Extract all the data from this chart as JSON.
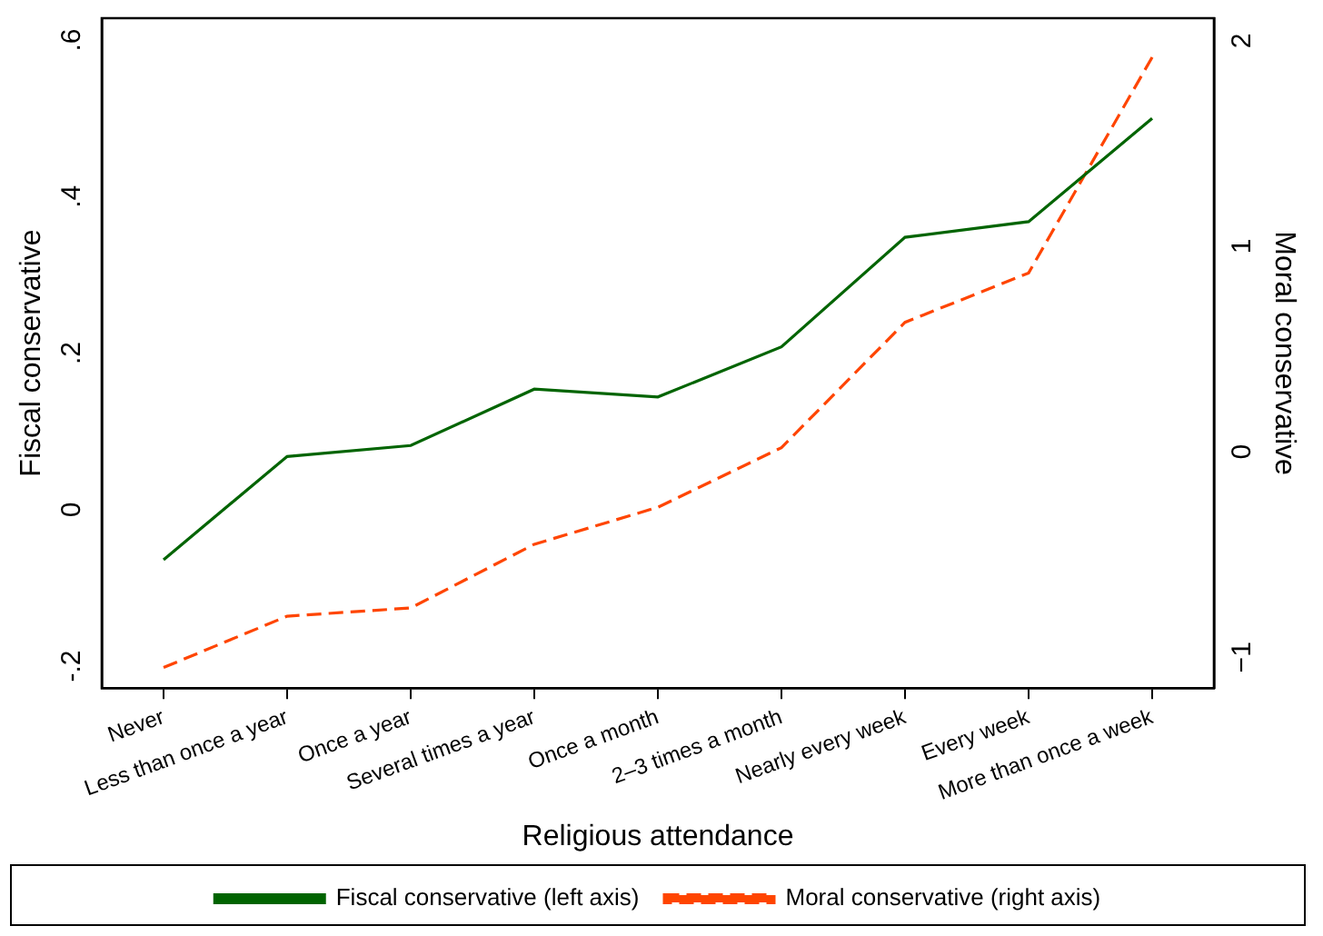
{
  "chart_data": {
    "type": "line",
    "xlabel": "Religious attendance",
    "ylabel": "Fiscal conservative",
    "y2label": "Moral conservative",
    "categories": [
      "Never",
      "Less than once a year",
      "Once a year",
      "Several times a year",
      "Once a month",
      "2–3 times a month",
      "Nearly every week",
      "Every week",
      "More than once a week"
    ],
    "series": [
      {
        "name": "Fiscal conservative (left axis)",
        "color": "#006400",
        "line_style": "solid",
        "values": [
          -0.064,
          0.068,
          0.082,
          0.154,
          0.144,
          0.208,
          0.348,
          0.368,
          0.5
        ]
      },
      {
        "name": "Moral conservative (right axis)",
        "color": "#ff4500",
        "line_style": "dashed",
        "axis": "y2",
        "values": [
          -1.05,
          -0.8,
          -0.76,
          -0.45,
          -0.27,
          0.02,
          0.63,
          0.87,
          1.92
        ]
      }
    ],
    "ylim": [
      -0.228,
      0.628
    ],
    "yticks": [
      {
        "value": -0.2,
        "label": "-.2"
      },
      0,
      {
        "value": 0.2,
        "label": ".2"
      },
      {
        "value": 0.4,
        "label": ".4"
      },
      {
        "value": 0.6,
        "label": ".6"
      }
    ],
    "y2lim": [
      -1.15,
      2.11
    ],
    "y2ticks": [
      {
        "value": -1,
        "label": "−1"
      },
      0,
      1,
      2
    ],
    "grid": false,
    "legend": "bottom",
    "marker": "none"
  }
}
